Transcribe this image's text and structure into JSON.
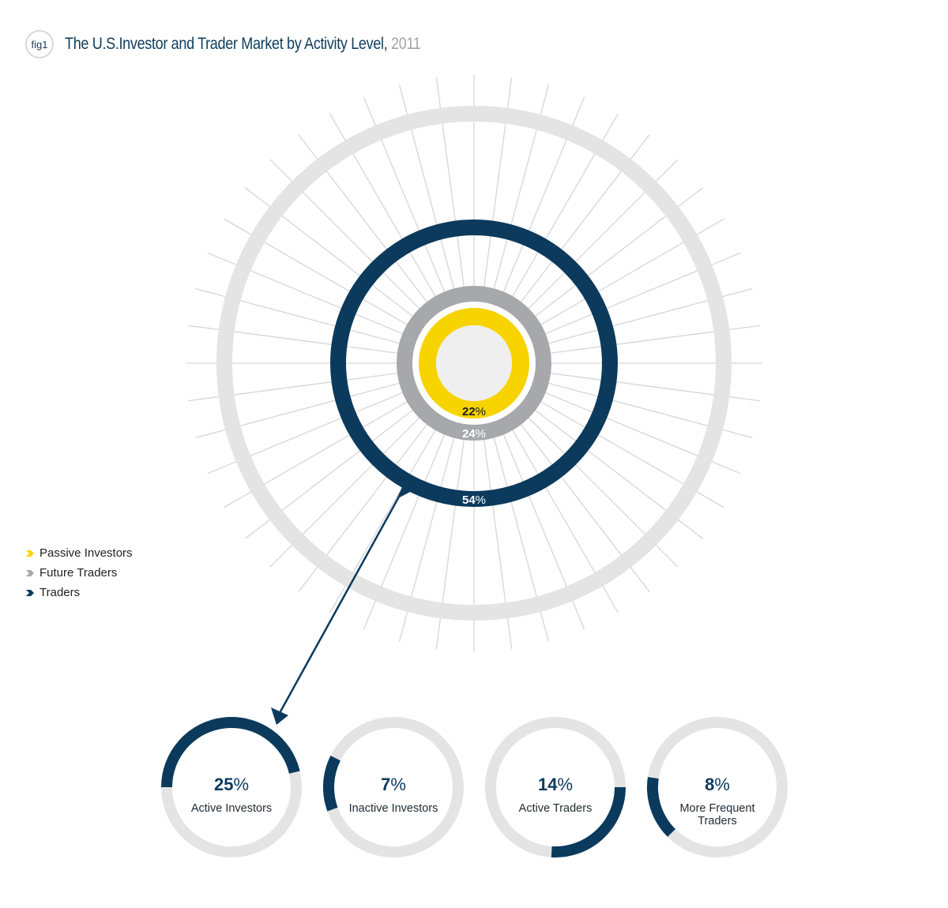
{
  "header": {
    "badge": "fig1",
    "title": "The U.S.Investor and Trader Market by Activity Level,",
    "year": "2011"
  },
  "legend": [
    {
      "label": "Passive Investors",
      "color": "#f7d300"
    },
    {
      "label": "Future Traders",
      "color": "#a7a8ab"
    },
    {
      "label": "Traders",
      "color": "#0b3a5c"
    }
  ],
  "chart_data": [
    {
      "type": "pie",
      "title": "The U.S.Investor and Trader Market by Activity Level, 2011",
      "series": [
        {
          "name": "Passive Investors",
          "value": 22,
          "label": "22",
          "color": "#f7d300"
        },
        {
          "name": "Future Traders",
          "value": 24,
          "label": "24",
          "color": "#a7a8ab"
        },
        {
          "name": "Traders",
          "value": 54,
          "label": "54",
          "color": "#0b3a5c"
        }
      ],
      "percent_sign": "%"
    },
    {
      "type": "pie",
      "title": "",
      "breakdown_of": "Traders",
      "total": 54,
      "series": [
        {
          "name": "Active Investors",
          "value": 25,
          "label": "25",
          "lines": [
            "Active Investors"
          ]
        },
        {
          "name": "Inactive Investors",
          "value": 7,
          "label": "7",
          "lines": [
            "Inactive Investors"
          ]
        },
        {
          "name": "Active Traders",
          "value": 14,
          "label": "14",
          "lines": [
            "Active Traders"
          ]
        },
        {
          "name": "More Frequent Traders",
          "value": 8,
          "label": "8",
          "lines": [
            "More Frequent",
            "Traders"
          ]
        }
      ],
      "percent_sign": "%"
    }
  ],
  "colors": {
    "navy": "#0b3a5c",
    "track": "#e4e4e5",
    "gray": "#a7a8ab",
    "yellow": "#f7d300",
    "spokes": "#d6d6d8",
    "center": "#efefef"
  }
}
